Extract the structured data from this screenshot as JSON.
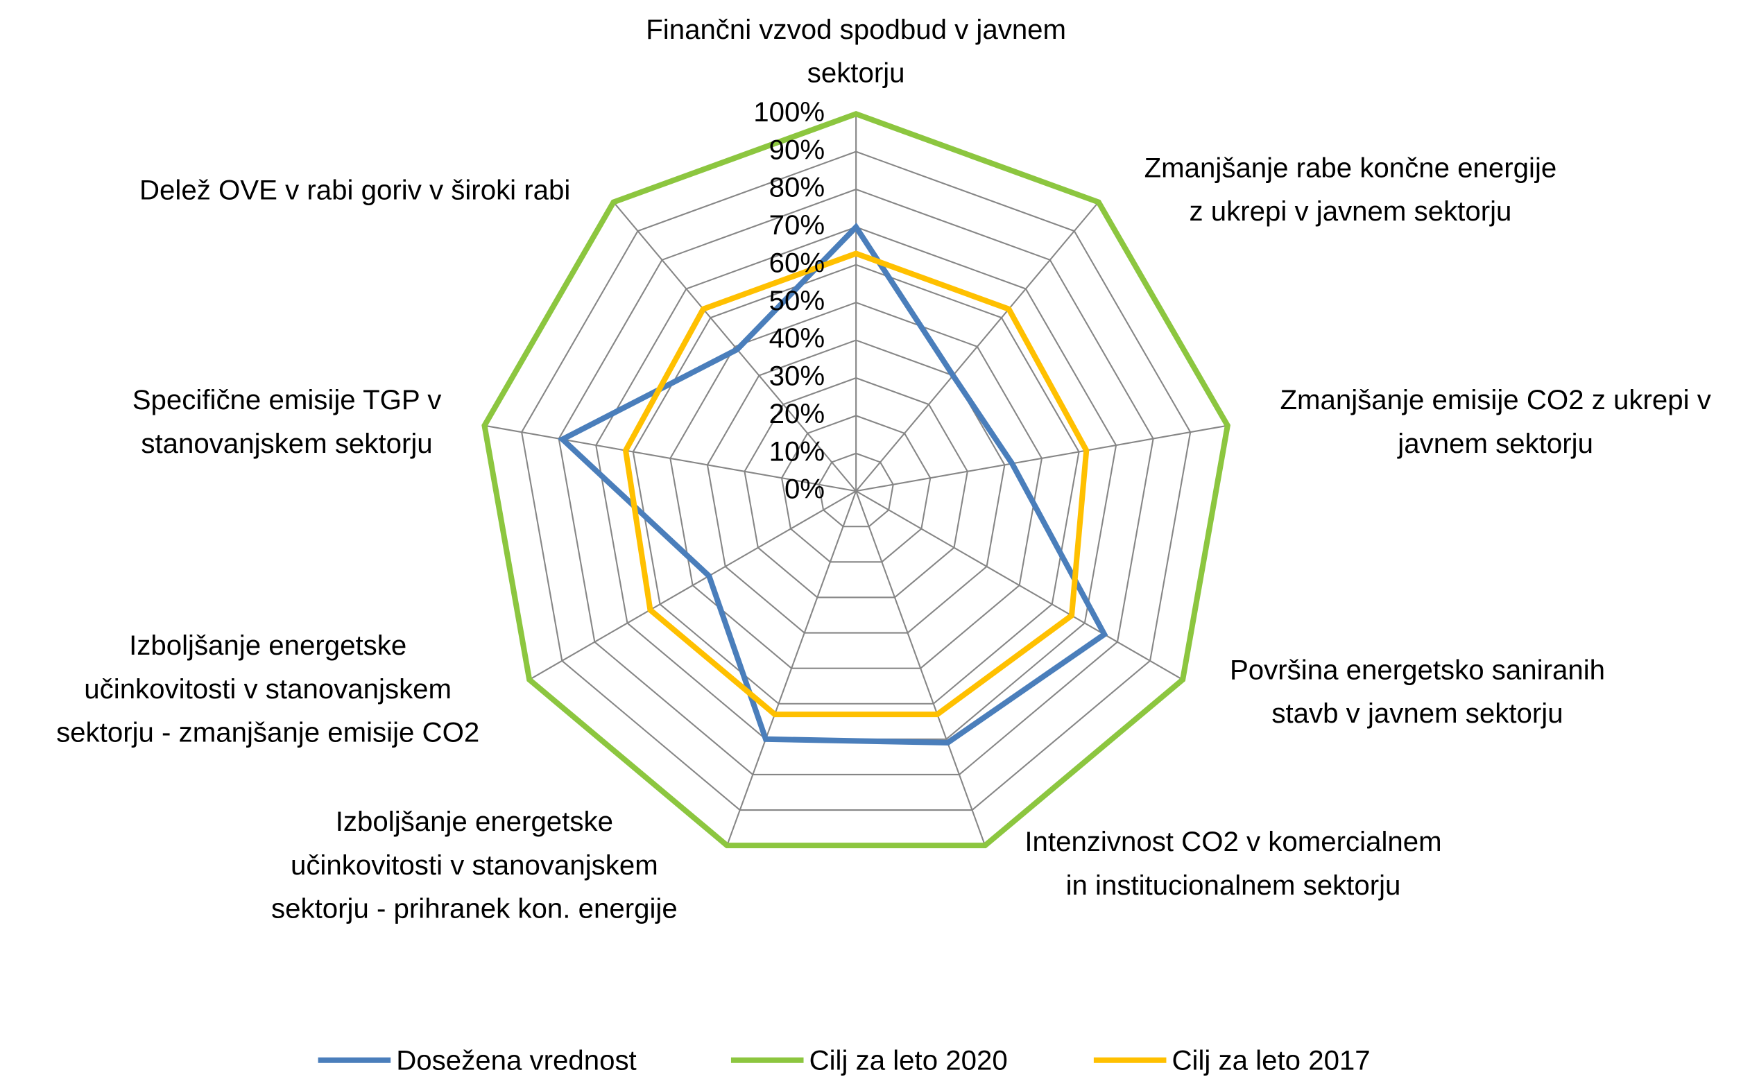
{
  "chart_data": {
    "type": "radar",
    "categories": [
      [
        "Finančni vzvod spodbud v javnem",
        "sektorju"
      ],
      [
        "Zmanjšanje rabe končne energije",
        "z ukrepi v javnem sektorju"
      ],
      [
        "Zmanjšanje emisije CO2 z ukrepi v",
        "javnem sektorju"
      ],
      [
        "Površina energetsko saniranih",
        "stavb v javnem sektorju"
      ],
      [
        "Intenzivnost CO2 v komercialnem",
        "in institucionalnem sektorju"
      ],
      [
        "Izboljšanje energetske",
        "učinkovitosti v stanovanjskem",
        "sektorju - prihranek kon. energije"
      ],
      [
        "Izboljšanje energetske",
        "učinkovitosti v stanovanjskem",
        "sektorju - zmanjšanje emisije CO2"
      ],
      [
        "Specifične emisije TGP v",
        "stanovanjskem sektorju"
      ],
      [
        "Delež OVE v rabi goriv v široki rabi"
      ]
    ],
    "series": [
      {
        "name": "Dosežena vrednost",
        "color": "#4a7ebb",
        "values": [
          70,
          40,
          42,
          76,
          71,
          70,
          45,
          79,
          49
        ]
      },
      {
        "name": "Cilj za leto 2020",
        "color": "#8cc63f",
        "values": [
          100,
          100,
          100,
          100,
          100,
          100,
          100,
          100,
          100
        ]
      },
      {
        "name": "Cilj za leto 2017",
        "color": "#ffc000",
        "values": [
          63,
          63,
          62,
          66,
          63,
          63,
          63,
          62,
          63
        ]
      }
    ],
    "ylim": [
      0,
      100
    ],
    "yticks": [
      {
        "value": 0,
        "label": "0%"
      },
      {
        "value": 10,
        "label": "10%"
      },
      {
        "value": 20,
        "label": "20%"
      },
      {
        "value": 30,
        "label": "30%"
      },
      {
        "value": 40,
        "label": "40%"
      },
      {
        "value": 50,
        "label": "50%"
      },
      {
        "value": 60,
        "label": "60%"
      },
      {
        "value": 70,
        "label": "70%"
      },
      {
        "value": 80,
        "label": "80%"
      },
      {
        "value": 90,
        "label": "90%"
      },
      {
        "value": 100,
        "label": "100%"
      }
    ],
    "grid": true,
    "legend": "bottom"
  }
}
